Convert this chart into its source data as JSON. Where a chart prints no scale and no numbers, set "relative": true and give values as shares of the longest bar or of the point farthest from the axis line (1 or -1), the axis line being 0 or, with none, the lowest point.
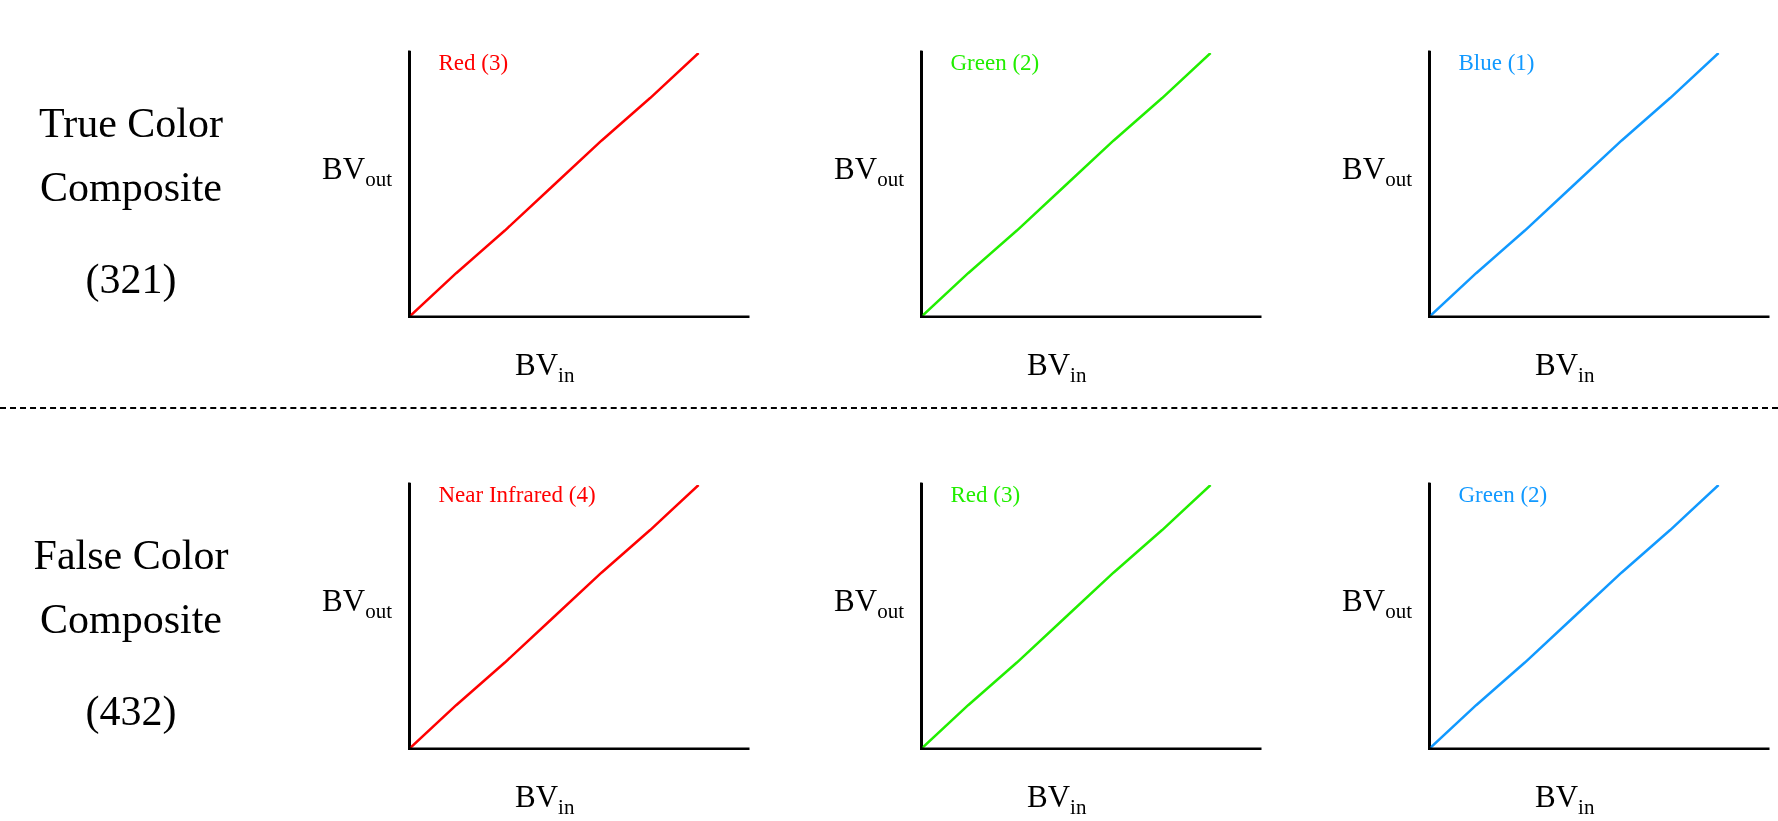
{
  "chart_data": [
    {
      "type": "line",
      "title": "True Color Composite",
      "subtitle": "(321)",
      "relative": true,
      "legend": false,
      "marker": "none",
      "line_style": "solid",
      "xlabel": "BV$_{in}$",
      "ylabel": "BV$_{out}$",
      "categories": [
        null,
        null,
        null,
        null,
        null,
        null,
        null,
        null
      ],
      "series": [
        {
          "name": "Red (3)",
          "color": "#ff0000",
          "values": [
            0,
            0.17,
            0.33,
            0.5,
            0.67,
            0.83,
            1,
            null
          ]
        }
      ]
    },
    {
      "type": "line",
      "relative": true,
      "legend": false,
      "marker": "none",
      "line_style": "solid",
      "xlabel": "BV$_{in}$",
      "ylabel": "BV$_{out}$",
      "categories": [
        null,
        null,
        null,
        null,
        null,
        null,
        null,
        null
      ],
      "series": [
        {
          "name": "Green (2)",
          "color": "#22ee00",
          "values": [
            0,
            0.17,
            0.33,
            0.5,
            0.67,
            0.83,
            1,
            null
          ]
        }
      ]
    },
    {
      "type": "line",
      "relative": true,
      "legend": false,
      "marker": "none",
      "line_style": "solid",
      "xlabel": "BV$_{in}$",
      "ylabel": "BV$_{out}$",
      "categories": [
        null,
        null,
        null,
        null,
        null,
        null,
        null,
        null
      ],
      "series": [
        {
          "name": "Blue (1)",
          "color": "#1199ff",
          "values": [
            0,
            0.17,
            0.33,
            0.5,
            0.67,
            0.83,
            1,
            null
          ]
        }
      ]
    },
    {
      "type": "line",
      "title": "False Color Composite",
      "subtitle": "(432)",
      "relative": true,
      "legend": false,
      "marker": "none",
      "line_style": "solid",
      "xlabel": "BV$_{in}$",
      "ylabel": "BV$_{out}$",
      "categories": [
        null,
        null,
        null,
        null,
        null,
        null,
        null,
        null
      ],
      "series": [
        {
          "name": "Near Infrared (4)",
          "color": "#ff0000",
          "values": [
            0,
            0.17,
            0.33,
            0.5,
            0.67,
            0.83,
            1,
            null
          ]
        }
      ]
    },
    {
      "type": "line",
      "relative": true,
      "legend": false,
      "marker": "none",
      "line_style": "solid",
      "xlabel": "BV$_{in}$",
      "ylabel": "BV$_{out}$",
      "categories": [
        null,
        null,
        null,
        null,
        null,
        null,
        null,
        null
      ],
      "series": [
        {
          "name": "Red (3)",
          "color": "#22ee00",
          "values": [
            0,
            0.17,
            0.33,
            0.5,
            0.67,
            0.83,
            1,
            null
          ]
        }
      ]
    },
    {
      "type": "line",
      "relative": true,
      "legend": false,
      "marker": "none",
      "line_style": "solid",
      "xlabel": "BV$_{in}$",
      "ylabel": "BV$_{out}$",
      "categories": [
        null,
        null,
        null,
        null,
        null,
        null,
        null,
        null
      ],
      "series": [
        {
          "name": "Green (2)",
          "color": "#1199ff",
          "values": [
            0,
            0.17,
            0.33,
            0.5,
            0.67,
            0.83,
            1,
            null
          ]
        }
      ]
    }
  ]
}
